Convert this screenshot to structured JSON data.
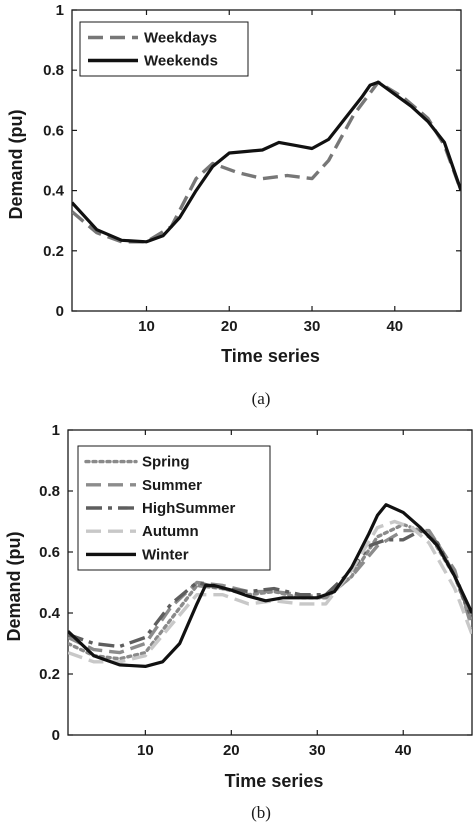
{
  "chart_data": [
    {
      "type": "line",
      "caption": "(a)",
      "xlabel": "Time series",
      "ylabel": "Demand (pu)",
      "xlim": [
        1,
        48
      ],
      "ylim": [
        0,
        1
      ],
      "xticks": [
        10,
        20,
        30,
        40
      ],
      "yticks": [
        0,
        0.2,
        0.4,
        0.6,
        0.8,
        1
      ],
      "ytick_labels": [
        "0",
        "0.2",
        "0.4",
        "0.6",
        "0.8",
        "1"
      ],
      "grid": false,
      "legend_position": "top-left",
      "series": [
        {
          "name": "Weekdays",
          "color": "#777777",
          "style": "dashed",
          "x": [
            1,
            4,
            7,
            10,
            13,
            16,
            18,
            21,
            24,
            27,
            30,
            32,
            35,
            38,
            41,
            44,
            46,
            48
          ],
          "values": [
            0.33,
            0.26,
            0.23,
            0.23,
            0.28,
            0.44,
            0.49,
            0.46,
            0.44,
            0.45,
            0.44,
            0.5,
            0.65,
            0.76,
            0.71,
            0.64,
            0.55,
            0.4
          ]
        },
        {
          "name": "Weekends",
          "color": "#111111",
          "style": "solid",
          "x": [
            1,
            4,
            7,
            10,
            12,
            14,
            16,
            18,
            20,
            22,
            24,
            26,
            28,
            30,
            32,
            34,
            36,
            37,
            38,
            40,
            42,
            44,
            46,
            48
          ],
          "values": [
            0.36,
            0.27,
            0.235,
            0.23,
            0.25,
            0.31,
            0.4,
            0.48,
            0.525,
            0.53,
            0.535,
            0.56,
            0.55,
            0.54,
            0.57,
            0.64,
            0.71,
            0.75,
            0.76,
            0.72,
            0.68,
            0.63,
            0.56,
            0.4
          ]
        }
      ]
    },
    {
      "type": "line",
      "caption": "(b)",
      "xlabel": "Time series",
      "ylabel": "Demand (pu)",
      "xlim": [
        1,
        48
      ],
      "ylim": [
        0,
        1
      ],
      "xticks": [
        10,
        20,
        30,
        40
      ],
      "yticks": [
        0,
        0.2,
        0.4,
        0.6,
        0.8,
        1
      ],
      "ytick_labels": [
        "0",
        "0.2",
        "0.4",
        "0.6",
        "0.8",
        "1"
      ],
      "grid": false,
      "legend_position": "top-left",
      "series": [
        {
          "name": "Spring",
          "color": "#8a8a8a",
          "style": "dotted",
          "x": [
            1,
            4,
            7,
            10,
            13,
            16,
            19,
            22,
            25,
            28,
            31,
            34,
            37,
            40,
            43,
            46,
            48
          ],
          "values": [
            0.3,
            0.26,
            0.25,
            0.27,
            0.38,
            0.49,
            0.48,
            0.46,
            0.47,
            0.45,
            0.45,
            0.52,
            0.65,
            0.69,
            0.66,
            0.52,
            0.37
          ]
        },
        {
          "name": "Summer",
          "color": "#8c8c8c",
          "style": "dashed",
          "x": [
            1,
            4,
            7,
            10,
            13,
            16,
            19,
            22,
            25,
            28,
            31,
            34,
            37,
            40,
            43,
            46,
            48
          ],
          "values": [
            0.32,
            0.28,
            0.27,
            0.3,
            0.42,
            0.5,
            0.49,
            0.47,
            0.47,
            0.46,
            0.45,
            0.52,
            0.62,
            0.67,
            0.67,
            0.54,
            0.35
          ]
        },
        {
          "name": "HighSummer",
          "color": "#5e5e5e",
          "style": "dashdot",
          "x": [
            1,
            4,
            7,
            10,
            13,
            16,
            19,
            22,
            25,
            28,
            31,
            34,
            36,
            38,
            40,
            42,
            44,
            46,
            48
          ],
          "values": [
            0.33,
            0.3,
            0.29,
            0.32,
            0.43,
            0.5,
            0.48,
            0.47,
            0.48,
            0.46,
            0.46,
            0.54,
            0.62,
            0.64,
            0.64,
            0.67,
            0.63,
            0.52,
            0.38
          ]
        },
        {
          "name": "Autumn",
          "color": "#c8c8c8",
          "style": "dashed",
          "x": [
            1,
            4,
            7,
            10,
            13,
            16,
            19,
            22,
            25,
            28,
            31,
            34,
            37,
            39,
            41,
            43,
            46,
            48
          ],
          "values": [
            0.27,
            0.24,
            0.24,
            0.26,
            0.36,
            0.46,
            0.46,
            0.43,
            0.44,
            0.43,
            0.43,
            0.54,
            0.68,
            0.7,
            0.68,
            0.63,
            0.48,
            0.33
          ]
        },
        {
          "name": "Winter",
          "color": "#111111",
          "style": "solid",
          "x": [
            1,
            4,
            7,
            10,
            12,
            14,
            16,
            17,
            18,
            20,
            22,
            24,
            26,
            28,
            30,
            32,
            34,
            36,
            37,
            38,
            40,
            42,
            44,
            46,
            48
          ],
          "values": [
            0.34,
            0.26,
            0.23,
            0.225,
            0.24,
            0.3,
            0.43,
            0.49,
            0.49,
            0.475,
            0.455,
            0.44,
            0.45,
            0.45,
            0.45,
            0.47,
            0.55,
            0.66,
            0.72,
            0.755,
            0.73,
            0.68,
            0.62,
            0.52,
            0.4
          ]
        }
      ]
    }
  ]
}
